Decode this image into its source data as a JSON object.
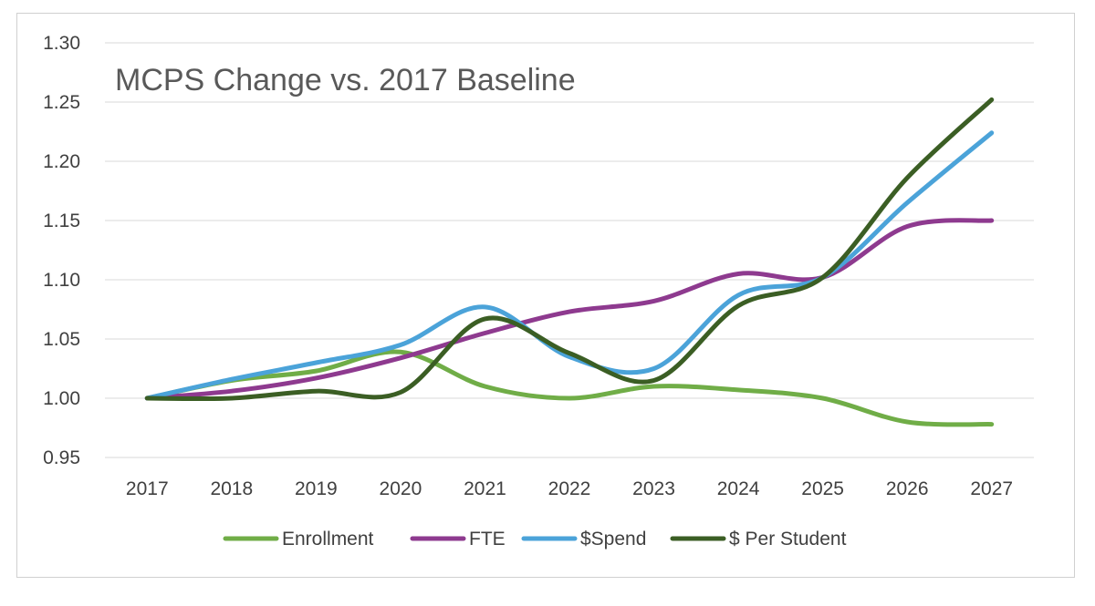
{
  "chart_data": {
    "type": "line",
    "title": "MCPS Change vs. 2017 Baseline",
    "xlabel": "",
    "ylabel": "",
    "x": [
      "2017",
      "2018",
      "2019",
      "2020",
      "2021",
      "2022",
      "2023",
      "2024",
      "2025",
      "2026",
      "2027"
    ],
    "ylim": [
      0.95,
      1.3
    ],
    "yticks": [
      "1.30",
      "1.25",
      "1.20",
      "1.15",
      "1.10",
      "1.05",
      "1.00",
      "0.95"
    ],
    "grid": true,
    "legend_position": "bottom",
    "smooth": true,
    "series": [
      {
        "name": "Enrollment",
        "color": "#70AD47",
        "values": [
          1.0,
          1.015,
          1.023,
          1.039,
          1.01,
          1.0,
          1.01,
          1.007,
          1.0,
          0.98,
          0.978
        ]
      },
      {
        "name": "FTE",
        "color": "#8E3A8F",
        "values": [
          1.0,
          1.006,
          1.017,
          1.034,
          1.055,
          1.073,
          1.082,
          1.105,
          1.102,
          1.145,
          1.15
        ]
      },
      {
        "name": "$Spend",
        "color": "#4BA3D9",
        "values": [
          1.0,
          1.016,
          1.03,
          1.045,
          1.077,
          1.035,
          1.025,
          1.087,
          1.102,
          1.165,
          1.224
        ]
      },
      {
        "name": "$ Per Student",
        "color": "#3B5E24",
        "values": [
          1.0,
          1.0,
          1.006,
          1.005,
          1.067,
          1.038,
          1.015,
          1.078,
          1.102,
          1.186,
          1.252
        ]
      }
    ]
  }
}
